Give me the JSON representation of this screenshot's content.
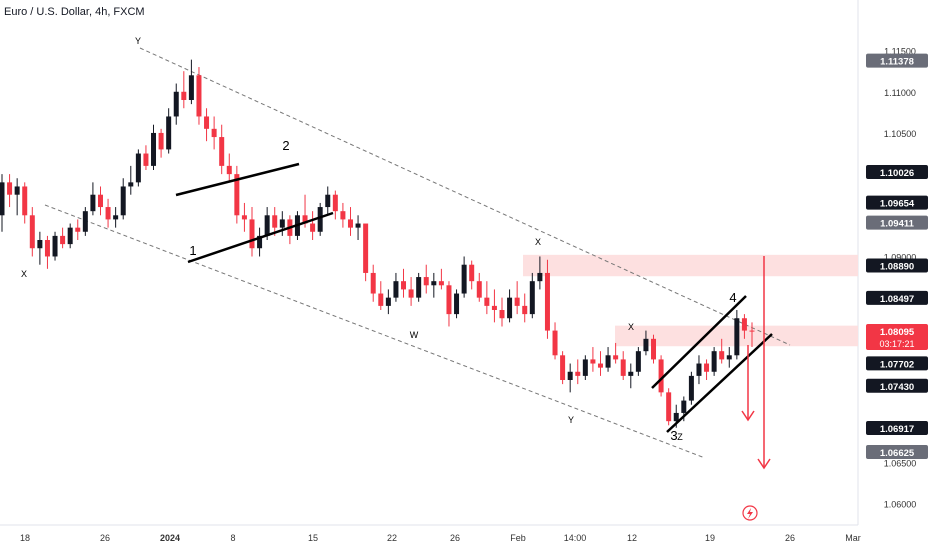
{
  "header": {
    "title": "Euro / U.S. Dollar, 4h, FXCM"
  },
  "colors": {
    "up": "#131722",
    "down": "#f23645",
    "zone": "#fde0e0",
    "channel": "#777777",
    "tag_dark": "#131722",
    "tag_red": "#f23645",
    "tag_gray": "#6a6d78",
    "axis_text": "#333333",
    "arrow": "#f23645",
    "axis_icon": "#f23645"
  },
  "chart_data": {
    "type": "candlestick",
    "symbol": "Euro / U.S. Dollar",
    "timeframe": "4h",
    "source": "FXCM",
    "ylim": [
      1.058,
      1.1175
    ],
    "x_ticks": [
      "18",
      "26",
      "2024",
      "8",
      "15",
      "22",
      "26",
      "Feb",
      "14:00",
      "12",
      "19",
      "26",
      "Mar"
    ],
    "y_ticks": [
      "1.11500",
      "1.11000",
      "1.10500",
      "1.09000",
      "1.06500",
      "1.06000"
    ],
    "price_tags": [
      {
        "value": 1.11378,
        "label": "1.11378",
        "style": "gray"
      },
      {
        "value": 1.10026,
        "label": "1.10026",
        "style": "dark"
      },
      {
        "value": 1.09654,
        "label": "1.09654",
        "style": "dark"
      },
      {
        "value": 1.09411,
        "label": "1.09411",
        "style": "gray"
      },
      {
        "value": 1.0889,
        "label": "1.08890",
        "style": "dark"
      },
      {
        "value": 1.08497,
        "label": "1.08497",
        "style": "dark"
      },
      {
        "value": 1.08095,
        "label": "1.08095",
        "sublabel": "03:17:21",
        "style": "red"
      },
      {
        "value": 1.07702,
        "label": "1.07702",
        "style": "dark"
      },
      {
        "value": 1.0743,
        "label": "1.07430",
        "style": "dark"
      },
      {
        "value": 1.06917,
        "label": "1.06917",
        "style": "dark"
      },
      {
        "value": 1.06625,
        "label": "1.06625",
        "style": "gray"
      }
    ],
    "zones": [
      {
        "from": 1.0876,
        "to": 1.0902
      },
      {
        "from": 1.0791,
        "to": 1.0816
      }
    ],
    "wave_labels": [
      "X",
      "Y",
      "2",
      "1",
      "W",
      "X",
      "Y",
      "X",
      "4",
      "3",
      "Z"
    ],
    "series": [
      {
        "name": "EURUSD",
        "values": [
          [
            1.095,
            1.1,
            1.093,
            1.099
          ],
          [
            1.099,
            1.1,
            1.096,
            1.0975
          ],
          [
            1.0975,
            1.0995,
            1.095,
            1.0985
          ],
          [
            1.0985,
            1.099,
            1.094,
            1.095
          ],
          [
            1.095,
            1.096,
            1.09,
            1.091
          ],
          [
            1.091,
            1.093,
            1.089,
            1.092
          ],
          [
            1.092,
            1.0925,
            1.0885,
            1.09
          ],
          [
            1.09,
            1.093,
            1.0895,
            1.0925
          ],
          [
            1.0925,
            1.0935,
            1.091,
            1.0915
          ],
          [
            1.0915,
            1.094,
            1.091,
            1.0935
          ],
          [
            1.0935,
            1.0945,
            1.092,
            1.093
          ],
          [
            1.093,
            1.096,
            1.0925,
            1.0955
          ],
          [
            1.0955,
            1.099,
            1.095,
            1.0975
          ],
          [
            1.0975,
            1.0985,
            1.095,
            1.096
          ],
          [
            1.096,
            1.097,
            1.0935,
            1.0945
          ],
          [
            1.0945,
            1.096,
            1.0935,
            1.095
          ],
          [
            1.095,
            1.0995,
            1.0945,
            1.0985
          ],
          [
            1.0985,
            1.101,
            1.0975,
            1.099
          ],
          [
            1.099,
            1.103,
            1.0985,
            1.1025
          ],
          [
            1.1025,
            1.1035,
            1.1005,
            1.101
          ],
          [
            1.101,
            1.106,
            1.1005,
            1.105
          ],
          [
            1.105,
            1.1055,
            1.102,
            1.103
          ],
          [
            1.103,
            1.108,
            1.1025,
            1.107
          ],
          [
            1.107,
            1.111,
            1.106,
            1.11
          ],
          [
            1.11,
            1.1125,
            1.108,
            1.109
          ],
          [
            1.109,
            1.1139,
            1.1085,
            1.112
          ],
          [
            1.112,
            1.113,
            1.106,
            1.107
          ],
          [
            1.107,
            1.108,
            1.104,
            1.1055
          ],
          [
            1.1055,
            1.107,
            1.103,
            1.1045
          ],
          [
            1.1045,
            1.106,
            1.1,
            1.101
          ],
          [
            1.101,
            1.1025,
            1.099,
            1.1
          ],
          [
            1.1,
            1.101,
            1.094,
            1.095
          ],
          [
            1.095,
            1.0965,
            1.093,
            1.0945
          ],
          [
            1.0945,
            1.096,
            1.09,
            1.091
          ],
          [
            1.091,
            1.0935,
            1.09,
            1.0925
          ],
          [
            1.0925,
            1.096,
            1.092,
            1.095
          ],
          [
            1.095,
            1.096,
            1.0925,
            1.0935
          ],
          [
            1.0935,
            1.0955,
            1.0925,
            1.0945
          ],
          [
            1.0945,
            1.095,
            1.0915,
            1.0925
          ],
          [
            1.0925,
            1.0955,
            1.092,
            1.095
          ],
          [
            1.095,
            1.0975,
            1.0935,
            1.094
          ],
          [
            1.094,
            1.0955,
            1.092,
            1.093
          ],
          [
            1.093,
            1.0965,
            1.0925,
            1.096
          ],
          [
            1.096,
            1.0985,
            1.095,
            1.0975
          ],
          [
            1.0975,
            1.098,
            1.0945,
            1.0955
          ],
          [
            1.0955,
            1.0965,
            1.0935,
            1.0945
          ],
          [
            1.0945,
            1.096,
            1.0925,
            1.0935
          ],
          [
            1.0935,
            1.095,
            1.092,
            1.094
          ],
          [
            1.094,
            1.089,
            1.087,
            1.088
          ],
          [
            1.088,
            1.089,
            1.0845,
            1.0855
          ],
          [
            1.0855,
            1.087,
            1.0835,
            1.084
          ],
          [
            1.084,
            1.086,
            1.083,
            1.085
          ],
          [
            1.085,
            1.088,
            1.0845,
            1.087
          ],
          [
            1.087,
            1.0885,
            1.085,
            1.086
          ],
          [
            1.086,
            1.0875,
            1.084,
            1.085
          ],
          [
            1.085,
            1.088,
            1.0845,
            1.0875
          ],
          [
            1.0875,
            1.089,
            1.0855,
            1.0865
          ],
          [
            1.0865,
            1.088,
            1.085,
            1.087
          ],
          [
            1.087,
            1.0885,
            1.086,
            1.0865
          ],
          [
            1.0865,
            1.087,
            1.0815,
            1.083
          ],
          [
            1.083,
            1.086,
            1.0825,
            1.0855
          ],
          [
            1.0855,
            1.09,
            1.085,
            1.089
          ],
          [
            1.089,
            1.0895,
            1.086,
            1.087
          ],
          [
            1.087,
            1.088,
            1.0845,
            1.085
          ],
          [
            1.085,
            1.087,
            1.083,
            1.084
          ],
          [
            1.084,
            1.086,
            1.082,
            1.0835
          ],
          [
            1.0835,
            1.085,
            1.0815,
            1.0825
          ],
          [
            1.0825,
            1.086,
            1.082,
            1.085
          ],
          [
            1.085,
            1.087,
            1.083,
            1.084
          ],
          [
            1.084,
            1.0855,
            1.082,
            1.083
          ],
          [
            1.083,
            1.088,
            1.0825,
            1.087
          ],
          [
            1.087,
            1.09,
            1.086,
            1.088
          ],
          [
            1.088,
            1.0896,
            1.08,
            1.081
          ],
          [
            1.081,
            1.082,
            1.0775,
            1.078
          ],
          [
            1.078,
            1.0785,
            1.0745,
            1.075
          ],
          [
            1.075,
            1.077,
            1.0735,
            1.076
          ],
          [
            1.076,
            1.0775,
            1.0745,
            1.0755
          ],
          [
            1.0755,
            1.078,
            1.075,
            1.0775
          ],
          [
            1.0775,
            1.079,
            1.076,
            1.077
          ],
          [
            1.077,
            1.0785,
            1.0755,
            1.0765
          ],
          [
            1.0765,
            1.079,
            1.076,
            1.078
          ],
          [
            1.078,
            1.0795,
            1.077,
            1.0775
          ],
          [
            1.0775,
            1.0785,
            1.075,
            1.0755
          ],
          [
            1.0755,
            1.077,
            1.074,
            1.076
          ],
          [
            1.076,
            1.079,
            1.0755,
            1.0785
          ],
          [
            1.0785,
            1.081,
            1.078,
            1.08
          ],
          [
            1.08,
            1.0805,
            1.077,
            1.0775
          ],
          [
            1.0775,
            1.078,
            1.073,
            1.0735
          ],
          [
            1.0735,
            1.074,
            1.0695,
            1.07
          ],
          [
            1.07,
            1.072,
            1.0692,
            1.071
          ],
          [
            1.071,
            1.073,
            1.07,
            1.0725
          ],
          [
            1.0725,
            1.076,
            1.072,
            1.0755
          ],
          [
            1.0755,
            1.078,
            1.0745,
            1.077
          ],
          [
            1.077,
            1.0775,
            1.075,
            1.076
          ],
          [
            1.076,
            1.079,
            1.0755,
            1.0785
          ],
          [
            1.0785,
            1.08,
            1.077,
            1.0775
          ],
          [
            1.0775,
            1.079,
            1.0765,
            1.078
          ],
          [
            1.078,
            1.0835,
            1.0775,
            1.0825
          ],
          [
            1.0825,
            1.083,
            1.08,
            1.081
          ],
          [
            1.081,
            1.082,
            1.079,
            1.0809
          ]
        ]
      }
    ]
  }
}
